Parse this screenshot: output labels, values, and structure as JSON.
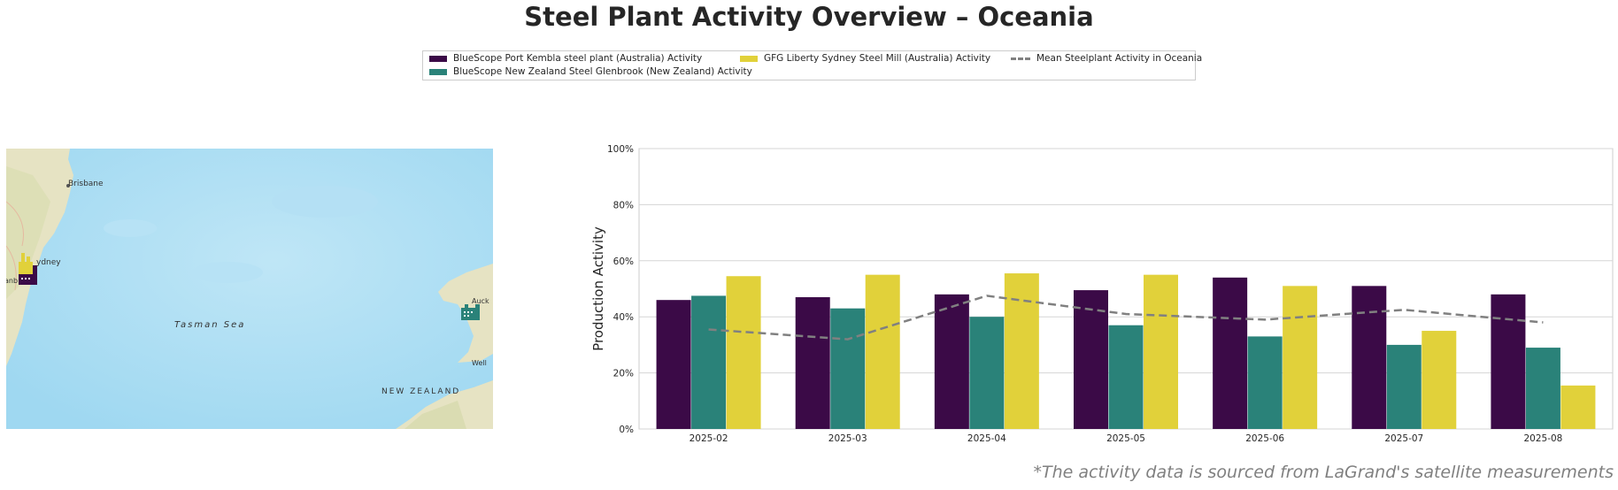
{
  "title": "Steel Plant Activity Overview – Oceania",
  "footnote": "*The activity data is sourced from LaGrand's satellite measurements",
  "legend": {
    "items": [
      {
        "label": "BlueScope Port Kembla steel plant (Australia) Activity",
        "color": "#3b0a47",
        "kind": "bar"
      },
      {
        "label": "BlueScope New Zealand Steel Glenbrook (New Zealand) Activity",
        "color": "#2a8279",
        "kind": "bar"
      },
      {
        "label": "GFG Liberty Sydney Steel Mill (Australia) Activity",
        "color": "#e1d13a",
        "kind": "bar"
      },
      {
        "label": "Mean Steelplant Activity in Oceania",
        "color": "#808080",
        "kind": "line"
      }
    ]
  },
  "map": {
    "labels": {
      "brisbane": "Brisbane",
      "sydney": "ydney",
      "tasman": "Tasman   Sea",
      "new_zealand": "NEW ZEALAND",
      "auckland": "Auck",
      "wellington": "Well",
      "canberra": "anb"
    },
    "icons": [
      "factory-icon-port-kembla",
      "factory-icon-liberty-sydney",
      "factory-icon-glenbrook"
    ],
    "colors": {
      "sea": "#a6dcf2",
      "land": "#e7e2c2"
    }
  },
  "chart_data": {
    "type": "bar",
    "ylabel": "Production Activity",
    "xlabel": "",
    "ylim": [
      0,
      100
    ],
    "yticks": [
      "0%",
      "20%",
      "40%",
      "60%",
      "80%",
      "100%"
    ],
    "grid": true,
    "categories": [
      "2025-02",
      "2025-03",
      "2025-04",
      "2025-05",
      "2025-06",
      "2025-07",
      "2025-08"
    ],
    "series": [
      {
        "name": "BlueScope Port Kembla steel plant (Australia) Activity",
        "color": "#3b0a47",
        "values": [
          46,
          47,
          48,
          49.5,
          54,
          51,
          48
        ]
      },
      {
        "name": "BlueScope New Zealand Steel Glenbrook (New Zealand) Activity",
        "color": "#2a8279",
        "values": [
          47.5,
          43,
          40,
          37,
          33,
          30,
          29
        ]
      },
      {
        "name": "GFG Liberty Sydney Steel Mill (Australia) Activity",
        "color": "#e1d13a",
        "values": [
          54.5,
          55,
          55.5,
          55,
          51,
          35,
          15.5
        ]
      }
    ],
    "line_series": {
      "name": "Mean Steelplant Activity in Oceania",
      "color": "#808080",
      "style": "dashed",
      "values": [
        35.5,
        32,
        47.5,
        41,
        39,
        42.5,
        38
      ]
    }
  }
}
